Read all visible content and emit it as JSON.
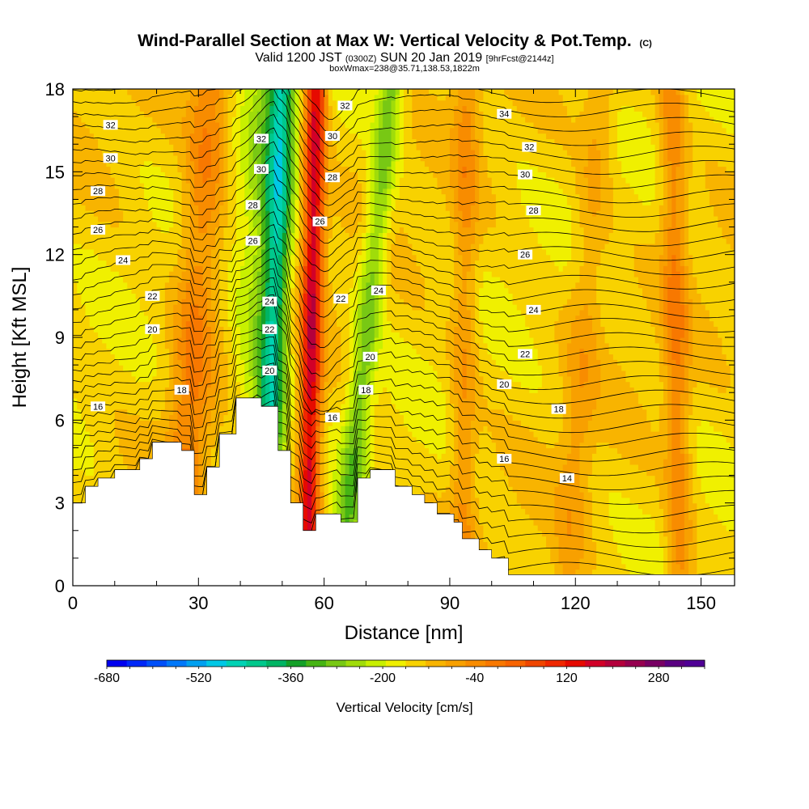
{
  "header": {
    "title_main": "Wind-Parallel Section at Max W: Vertical Velocity & Pot.Temp.",
    "title_copyright": "(C)",
    "valid_line_prefix": "Valid 1200 JST",
    "valid_line_zulu": "(0300Z)",
    "valid_line_date": "SUN 20 Jan 2019",
    "valid_line_fcst": "[9hrFcst@2144z]",
    "box_line": "boxWmax=238@35.71,138.53,1822m"
  },
  "chart_data": {
    "type": "heatmap",
    "xlabel": "Distance [nm]",
    "ylabel": "Height [Kft MSL]",
    "xlim": [
      0,
      158
    ],
    "ylim": [
      0,
      18
    ],
    "x_ticks": [
      0,
      30,
      60,
      90,
      120,
      150
    ],
    "y_ticks": [
      0,
      3,
      6,
      9,
      12,
      15,
      18
    ],
    "x_minor_step": 10,
    "y_minor_step": 1,
    "terrain_kft": [
      [
        0,
        3.0
      ],
      [
        3,
        3.6
      ],
      [
        6,
        3.9
      ],
      [
        10,
        4.2
      ],
      [
        16,
        4.6
      ],
      [
        19,
        5.2
      ],
      [
        26,
        4.9
      ],
      [
        29,
        3.3
      ],
      [
        32,
        4.3
      ],
      [
        35,
        5.5
      ],
      [
        39,
        6.8
      ],
      [
        45,
        6.5
      ],
      [
        49,
        4.9
      ],
      [
        52,
        3.0
      ],
      [
        55,
        2.0
      ],
      [
        58,
        2.6
      ],
      [
        64,
        2.3
      ],
      [
        68,
        3.9
      ],
      [
        71,
        4.2
      ],
      [
        77,
        3.6
      ],
      [
        81,
        3.3
      ],
      [
        84,
        3.0
      ],
      [
        87,
        2.6
      ],
      [
        91,
        2.3
      ],
      [
        93,
        1.7
      ],
      [
        97,
        1.3
      ],
      [
        100,
        1.0
      ],
      [
        104,
        0.4
      ],
      [
        158,
        0.4
      ]
    ],
    "velocity_field_cm_s": {
      "background": -60,
      "bands": [
        {
          "x_base": 25,
          "x_top": 33,
          "width": 5,
          "peak": 80
        },
        {
          "x_base": 46,
          "x_top": 50,
          "width": 3,
          "peak": -320
        },
        {
          "x_base": 43,
          "x_top": 47,
          "width": 6,
          "peak": -180
        },
        {
          "x_base": 56,
          "x_top": 58,
          "width": 2.5,
          "peak": 300
        },
        {
          "x_base": 64,
          "x_top": 76,
          "width": 3,
          "peak": -220
        },
        {
          "x_base": 93,
          "x_top": 94,
          "width": 3,
          "peak": 40
        },
        {
          "x_base": 118,
          "x_top": 126,
          "width": 4,
          "peak": 10
        },
        {
          "x_base": 145,
          "x_top": 143,
          "width": 3,
          "peak": 70
        }
      ]
    },
    "theta_contours": [
      {
        "value": "32",
        "x": 9,
        "y": 16.7
      },
      {
        "value": "30",
        "x": 9,
        "y": 15.5
      },
      {
        "value": "28",
        "x": 6,
        "y": 14.3
      },
      {
        "value": "26",
        "x": 6,
        "y": 12.9
      },
      {
        "value": "24",
        "x": 12,
        "y": 11.8
      },
      {
        "value": "22",
        "x": 19,
        "y": 10.5
      },
      {
        "value": "20",
        "x": 19,
        "y": 9.3
      },
      {
        "value": "18",
        "x": 26,
        "y": 7.1
      },
      {
        "value": "16",
        "x": 6,
        "y": 6.5
      },
      {
        "value": "32",
        "x": 45,
        "y": 16.2
      },
      {
        "value": "30",
        "x": 45,
        "y": 15.1
      },
      {
        "value": "28",
        "x": 43,
        "y": 13.8
      },
      {
        "value": "26",
        "x": 43,
        "y": 12.5
      },
      {
        "value": "24",
        "x": 47,
        "y": 10.3
      },
      {
        "value": "22",
        "x": 47,
        "y": 9.3
      },
      {
        "value": "20",
        "x": 47,
        "y": 7.8
      },
      {
        "value": "32",
        "x": 65,
        "y": 17.4
      },
      {
        "value": "30",
        "x": 62,
        "y": 16.3
      },
      {
        "value": "28",
        "x": 62,
        "y": 14.8
      },
      {
        "value": "26",
        "x": 59,
        "y": 13.2
      },
      {
        "value": "22",
        "x": 64,
        "y": 10.4
      },
      {
        "value": "24",
        "x": 73,
        "y": 10.7
      },
      {
        "value": "20",
        "x": 71,
        "y": 8.3
      },
      {
        "value": "18",
        "x": 70,
        "y": 7.1
      },
      {
        "value": "16",
        "x": 62,
        "y": 6.1
      },
      {
        "value": "34",
        "x": 103,
        "y": 17.1
      },
      {
        "value": "32",
        "x": 109,
        "y": 15.9
      },
      {
        "value": "30",
        "x": 108,
        "y": 14.9
      },
      {
        "value": "28",
        "x": 110,
        "y": 13.6
      },
      {
        "value": "26",
        "x": 108,
        "y": 12.0
      },
      {
        "value": "24",
        "x": 110,
        "y": 10.0
      },
      {
        "value": "22",
        "x": 108,
        "y": 8.4
      },
      {
        "value": "20",
        "x": 103,
        "y": 7.3
      },
      {
        "value": "18",
        "x": 116,
        "y": 6.4
      },
      {
        "value": "16",
        "x": 103,
        "y": 4.6
      },
      {
        "value": "14",
        "x": 118,
        "y": 3.9
      }
    ],
    "colorbar": {
      "label": "Vertical Velocity [cm/s]",
      "min": -680,
      "max": 360,
      "step": 40,
      "tick_labels": [
        "-680",
        "-520",
        "-360",
        "-200",
        "-40",
        "120",
        "280"
      ],
      "colors": [
        "#0000f0",
        "#0028f8",
        "#0050fa",
        "#0078fa",
        "#00a0f0",
        "#00c8e6",
        "#00d2b4",
        "#00c88c",
        "#00b464",
        "#14a028",
        "#46b414",
        "#78c814",
        "#a0dc0a",
        "#c8f000",
        "#f0f000",
        "#f8d200",
        "#f8b400",
        "#f8a000",
        "#f88c00",
        "#f87800",
        "#f86400",
        "#f04600",
        "#f02800",
        "#e60a00",
        "#d20028",
        "#b4003c",
        "#960050",
        "#780064",
        "#5a0082",
        "#500096"
      ]
    }
  }
}
